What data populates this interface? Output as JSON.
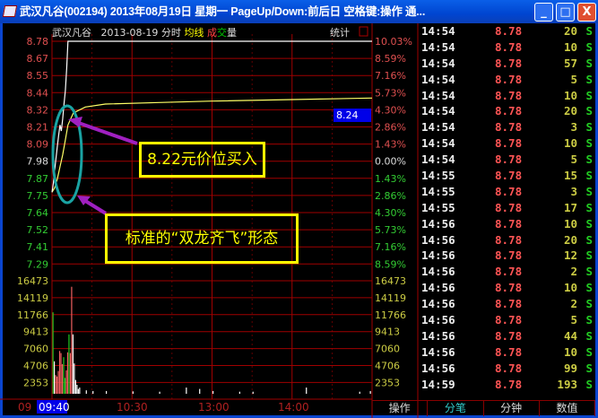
{
  "window": {
    "title": "武汉凡谷(002194) 2013年08月19日 星期一 PageUp/Down:前后日 空格键:操作 通...",
    "buttons": {
      "minimize": "_",
      "maximize": "□",
      "close": "X"
    }
  },
  "chart_header": {
    "name": "武汉凡谷",
    "date_mode": "2013-08-19 分时",
    "avg_label": "均线",
    "vol_label_1": "成",
    "vol_label_2": "交",
    "vol_label_3": "量",
    "stat": "统计"
  },
  "colors": {
    "up": "#ff5555",
    "down": "#22cc22",
    "flat": "#ffffff",
    "price_line": "#ffffff",
    "avg_line": "#ffff66",
    "grid": "#a00000",
    "highlight": "#0000e8"
  },
  "chart_data": {
    "type": "line",
    "price_ticks": [
      "8.78",
      "8.67",
      "8.55",
      "8.44",
      "8.32",
      "8.21",
      "8.09",
      "7.98",
      "7.87",
      "7.75",
      "7.64",
      "7.52",
      "7.41",
      "7.29"
    ],
    "pct_ticks": [
      "10.03%",
      "8.59%",
      "7.16%",
      "5.73%",
      "4.30%",
      "2.86%",
      "1.43%",
      "0.00%",
      "1.43%",
      "2.86%",
      "4.30%",
      "5.73%",
      "7.16%",
      "8.59%"
    ],
    "vol_ticks": [
      "16473",
      "14119",
      "11766",
      "9413",
      "7060",
      "4706",
      "2353"
    ],
    "time_ticks": [
      "09",
      "09:40",
      "10:30",
      "13:00",
      "14:00"
    ],
    "ylim": [
      7.18,
      8.78
    ],
    "vol_ylim": [
      0,
      18826
    ],
    "prev_close": 7.98,
    "current_price": "8.24",
    "price_series": {
      "minutes": [
        0,
        1,
        2,
        3,
        4,
        5,
        6,
        7,
        8,
        9,
        10,
        11,
        12,
        240
      ],
      "values": [
        7.77,
        7.83,
        7.92,
        8.0,
        8.08,
        8.15,
        8.22,
        8.18,
        8.26,
        8.36,
        8.45,
        8.6,
        8.78,
        8.78
      ]
    },
    "avg_series": {
      "minutes": [
        0,
        2,
        4,
        6,
        8,
        10,
        12,
        16,
        25,
        40,
        80,
        120,
        180,
        240
      ],
      "values": [
        7.77,
        7.8,
        7.86,
        7.94,
        8.02,
        8.12,
        8.22,
        8.3,
        8.34,
        8.36,
        8.37,
        8.38,
        8.39,
        8.4
      ]
    },
    "volume": {
      "minutes": [
        0,
        1,
        2,
        3,
        4,
        5,
        6,
        7,
        8,
        9,
        10,
        11,
        12,
        13,
        14,
        15,
        16,
        17,
        18,
        19,
        20,
        25,
        30,
        40,
        60,
        80,
        100,
        110,
        120,
        140,
        150,
        190,
        230,
        238
      ],
      "values": [
        11800,
        4700,
        2700,
        2500,
        3300,
        6200,
        5900,
        4300,
        5300,
        2300,
        3400,
        6000,
        8600,
        5900,
        15500,
        8600,
        4400,
        2000,
        1300,
        700,
        900,
        500,
        400,
        400,
        350,
        300,
        900,
        700,
        400,
        300,
        300,
        900,
        300,
        400
      ],
      "colors": [
        "down",
        "flat",
        "up",
        "up",
        "up",
        "up",
        "up",
        "up",
        "down",
        "down",
        "up",
        "up",
        "down",
        "up",
        "up",
        "flat",
        "flat",
        "flat",
        "flat",
        "flat",
        "flat",
        "flat",
        "flat",
        "flat",
        "flat",
        "flat",
        "flat",
        "flat",
        "flat",
        "flat",
        "flat",
        "flat",
        "flat",
        "flat"
      ]
    }
  },
  "annotations": {
    "buy_note": "8.22元价位买入",
    "pattern_note": "标准的“双龙齐飞”形态"
  },
  "ticks": [
    {
      "time": "14:54",
      "price": "8.78",
      "vol": "20",
      "side": "S"
    },
    {
      "time": "14:54",
      "price": "8.78",
      "vol": "10",
      "side": "S"
    },
    {
      "time": "14:54",
      "price": "8.78",
      "vol": "57",
      "side": "S"
    },
    {
      "time": "14:54",
      "price": "8.78",
      "vol": "5",
      "side": "S"
    },
    {
      "time": "14:54",
      "price": "8.78",
      "vol": "10",
      "side": "S"
    },
    {
      "time": "14:54",
      "price": "8.78",
      "vol": "20",
      "side": "S"
    },
    {
      "time": "14:54",
      "price": "8.78",
      "vol": "3",
      "side": "S"
    },
    {
      "time": "14:54",
      "price": "8.78",
      "vol": "10",
      "side": "S"
    },
    {
      "time": "14:54",
      "price": "8.78",
      "vol": "5",
      "side": "S"
    },
    {
      "time": "14:55",
      "price": "8.78",
      "vol": "15",
      "side": "S"
    },
    {
      "time": "14:55",
      "price": "8.78",
      "vol": "3",
      "side": "S"
    },
    {
      "time": "14:55",
      "price": "8.78",
      "vol": "17",
      "side": "S"
    },
    {
      "time": "14:56",
      "price": "8.78",
      "vol": "10",
      "side": "S"
    },
    {
      "time": "14:56",
      "price": "8.78",
      "vol": "20",
      "side": "S"
    },
    {
      "time": "14:56",
      "price": "8.78",
      "vol": "12",
      "side": "S"
    },
    {
      "time": "14:56",
      "price": "8.78",
      "vol": "2",
      "side": "S"
    },
    {
      "time": "14:56",
      "price": "8.78",
      "vol": "10",
      "side": "S"
    },
    {
      "time": "14:56",
      "price": "8.78",
      "vol": "2",
      "side": "S"
    },
    {
      "time": "14:56",
      "price": "8.78",
      "vol": "5",
      "side": "S"
    },
    {
      "time": "14:56",
      "price": "8.78",
      "vol": "44",
      "side": "S"
    },
    {
      "time": "14:56",
      "price": "8.78",
      "vol": "10",
      "side": "S"
    },
    {
      "time": "14:56",
      "price": "8.78",
      "vol": "99",
      "side": "S"
    },
    {
      "time": "14:59",
      "price": "8.78",
      "vol": "193",
      "side": "S"
    }
  ],
  "bottom_tabs": [
    {
      "label": "操作"
    },
    {
      "label": "分笔",
      "active": true
    },
    {
      "label": "分钟"
    },
    {
      "label": "数值"
    }
  ]
}
